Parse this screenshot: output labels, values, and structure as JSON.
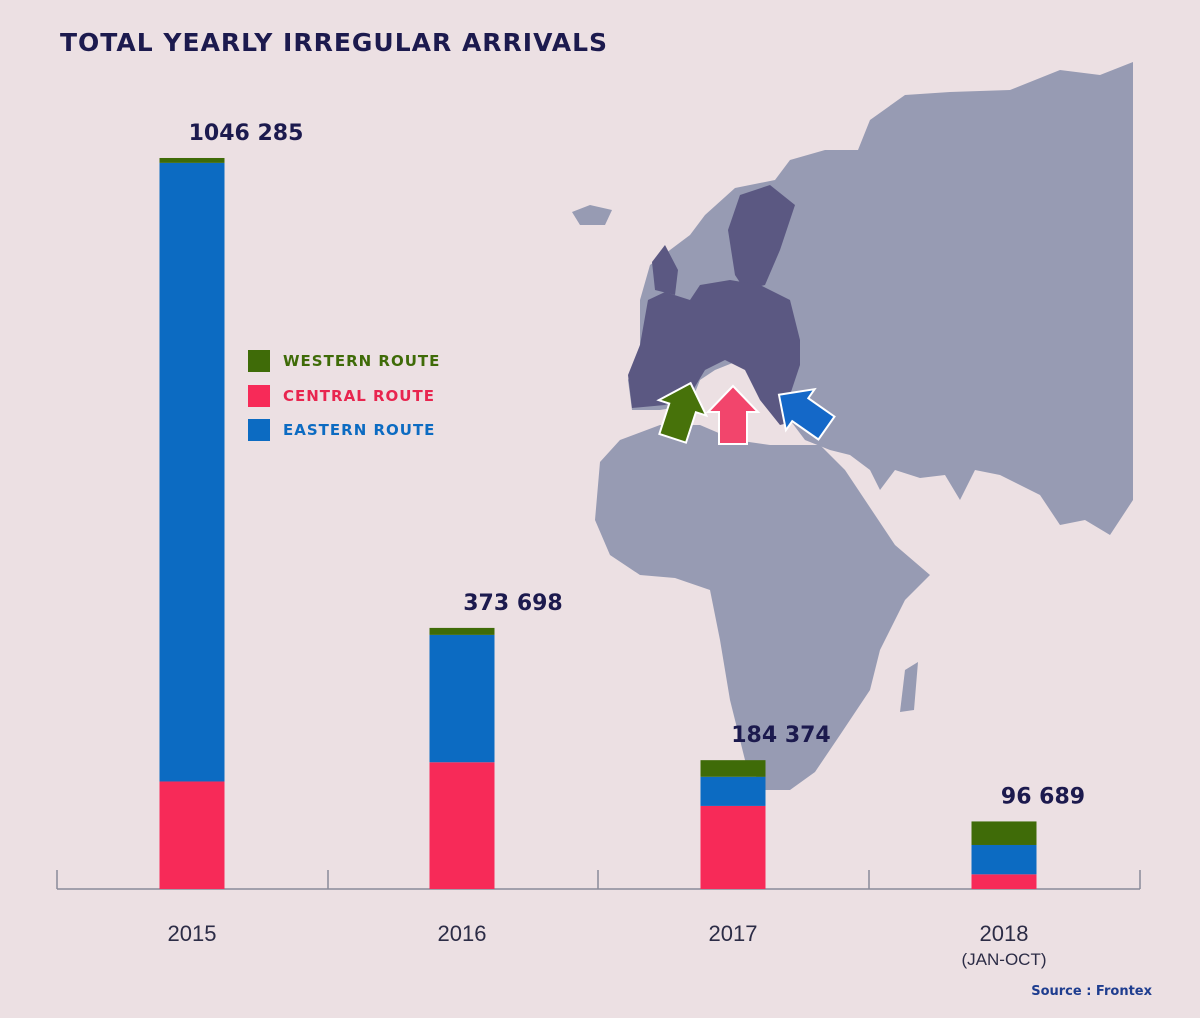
{
  "colors": {
    "background": "#ece0e3",
    "western": "#3f6b08",
    "central": "#f72a58",
    "eastern": "#0c6bc2",
    "title": "#1c1a4e",
    "map_land": "#979bb3",
    "map_eu": "#5b5882"
  },
  "chart_data": {
    "type": "bar",
    "stacked": true,
    "title": "TOTAL YEARLY IRREGULAR ARRIVALS",
    "categories": [
      "2015",
      "2016",
      "2017",
      "2018"
    ],
    "category_sublabels": [
      "",
      "",
      "",
      "(JAN-OCT)"
    ],
    "totals": [
      1046285,
      373698,
      184374,
      96689
    ],
    "total_labels": [
      "1046 285",
      "373 698",
      "184 374",
      "96 689"
    ],
    "series": [
      {
        "name": "CENTRAL ROUTE",
        "color": "#f72a58",
        "values": [
          153900,
          181400,
          118900,
          21000
        ]
      },
      {
        "name": "EASTERN ROUTE",
        "color": "#0c6bc2",
        "values": [
          885400,
          182300,
          41700,
          42000
        ]
      },
      {
        "name": "WESTERN ROUTE",
        "color": "#3f6b08",
        "values": [
          7000,
          10000,
          23800,
          33700
        ]
      }
    ],
    "legend_order": [
      "WESTERN ROUTE",
      "CENTRAL ROUTE",
      "EASTERN ROUTE"
    ],
    "legend_position": "left, beside 2015 bar",
    "ylim": [
      0,
      1046285
    ],
    "grid": false,
    "source": "Source : Frontex"
  },
  "map": {
    "description_icons": [
      "green-arrow-icon",
      "pink-arrow-icon",
      "blue-arrow-icon"
    ]
  }
}
